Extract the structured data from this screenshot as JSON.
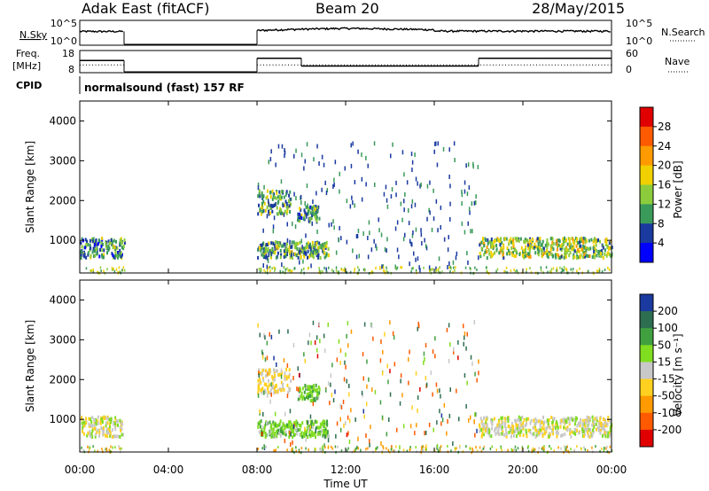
{
  "header": {
    "station": "Adak East (fitACF)",
    "beam": "Beam 20",
    "date": "28/May/2015"
  },
  "top_panels": {
    "nsky_label": "N.Sky",
    "nsearch_label": "N.Search",
    "nsky_ticks": [
      "10^5",
      "10^0"
    ],
    "nsearch_ticks": [
      "10^5",
      "10^0"
    ],
    "freq_label": "Freq.",
    "freq_unit": "[MHz]",
    "freq_ticks": [
      "18",
      "8"
    ],
    "nave_label": "Nave",
    "nave_ticks": [
      "60",
      "0"
    ],
    "cpid_label": "CPID",
    "cpid_value": "normalsound (fast) 157 RF"
  },
  "colorbars": {
    "power": {
      "label": "Power [dB]",
      "ticks": [
        "28",
        "24",
        "20",
        "16",
        "12",
        "8",
        "4"
      ],
      "colors": [
        "#e00000",
        "#ff5a00",
        "#ff9a00",
        "#f0d000",
        "#8ccc3c",
        "#3a9a5a",
        "#1a3aa0",
        "#0000ff"
      ]
    },
    "velocity": {
      "label": "Velocity [m s⁻¹]",
      "ticks": [
        "200",
        "100",
        "50",
        "15",
        "-15",
        "-50",
        "-100",
        "-200"
      ],
      "colors": [
        "#1a3aa0",
        "#2e6e50",
        "#40a040",
        "#80dd20",
        "#c8c8c8",
        "#ffd020",
        "#ff9a00",
        "#ff5a00",
        "#e00000"
      ]
    }
  },
  "chart_data": [
    {
      "type": "line",
      "title": "N.Sky / N.Search",
      "x": [
        "00:00",
        "02:00",
        "08:00",
        "12:00",
        "16:00",
        "18:00",
        "20:00",
        "24:00"
      ],
      "series": [
        {
          "name": "N.Sky",
          "values": [
            1000,
            1000,
            1200,
            3000,
            1500,
            700,
            600,
            600
          ]
        }
      ],
      "ylim": [
        "10^0",
        "10^5"
      ]
    },
    {
      "type": "line",
      "title": "Freq / Nave",
      "x": [
        "00:00",
        "02:00",
        "08:00",
        "10:00",
        "18:00",
        "24:00"
      ],
      "series": [
        {
          "name": "Freq",
          "values": [
            14,
            14,
            14.5,
            11,
            14.5,
            14.5
          ]
        },
        {
          "name": "Nave",
          "values": [
            2,
            2,
            2,
            2,
            2,
            2
          ]
        }
      ],
      "ylim": [
        8,
        18
      ]
    },
    {
      "type": "heatmap",
      "title": "Power",
      "xlabel": "Time UT",
      "ylabel": "Slant Range [km]",
      "xlim": [
        0,
        24
      ],
      "ylim": [
        180,
        4500
      ],
      "x_ticks": [
        "00:00",
        "04:00",
        "08:00",
        "12:00",
        "16:00",
        "20:00",
        "00:00"
      ],
      "y_ticks": [
        "1000",
        "2000",
        "3000",
        "4000"
      ],
      "scatter_regions": [
        {
          "t0": 0.0,
          "t1": 2.0,
          "r0": 600,
          "r1": 1100,
          "value_db": 10
        },
        {
          "t0": 8.0,
          "t1": 11.2,
          "r0": 600,
          "r1": 1000,
          "value_db": 12
        },
        {
          "t0": 8.0,
          "t1": 9.5,
          "r0": 1700,
          "r1": 2300,
          "value_db": 12
        },
        {
          "t0": 9.8,
          "t1": 10.8,
          "r0": 1500,
          "r1": 1900,
          "value_db": 10
        },
        {
          "t0": 18.0,
          "t1": 24.0,
          "r0": 600,
          "r1": 1100,
          "value_db": 14
        }
      ]
    },
    {
      "type": "heatmap",
      "title": "Velocity",
      "xlabel": "Time UT",
      "ylabel": "Slant Range [km]",
      "xlim": [
        0,
        24
      ],
      "ylim": [
        180,
        4500
      ],
      "x_ticks": [
        "00:00",
        "04:00",
        "08:00",
        "12:00",
        "16:00",
        "20:00",
        "00:00"
      ],
      "y_ticks": [
        "1000",
        "2000",
        "3000",
        "4000"
      ],
      "scatter_regions": [
        {
          "t0": 0.0,
          "t1": 2.0,
          "r0": 600,
          "r1": 1100,
          "value_ms": 0
        },
        {
          "t0": 8.0,
          "t1": 11.2,
          "r0": 600,
          "r1": 1000,
          "value_ms": 40
        },
        {
          "t0": 8.0,
          "t1": 9.5,
          "r0": 1700,
          "r1": 2300,
          "value_ms": -20
        },
        {
          "t0": 9.8,
          "t1": 10.8,
          "r0": 1500,
          "r1": 1900,
          "value_ms": 40
        },
        {
          "t0": 18.0,
          "t1": 24.0,
          "r0": 600,
          "r1": 1100,
          "value_ms": 0
        }
      ]
    }
  ]
}
